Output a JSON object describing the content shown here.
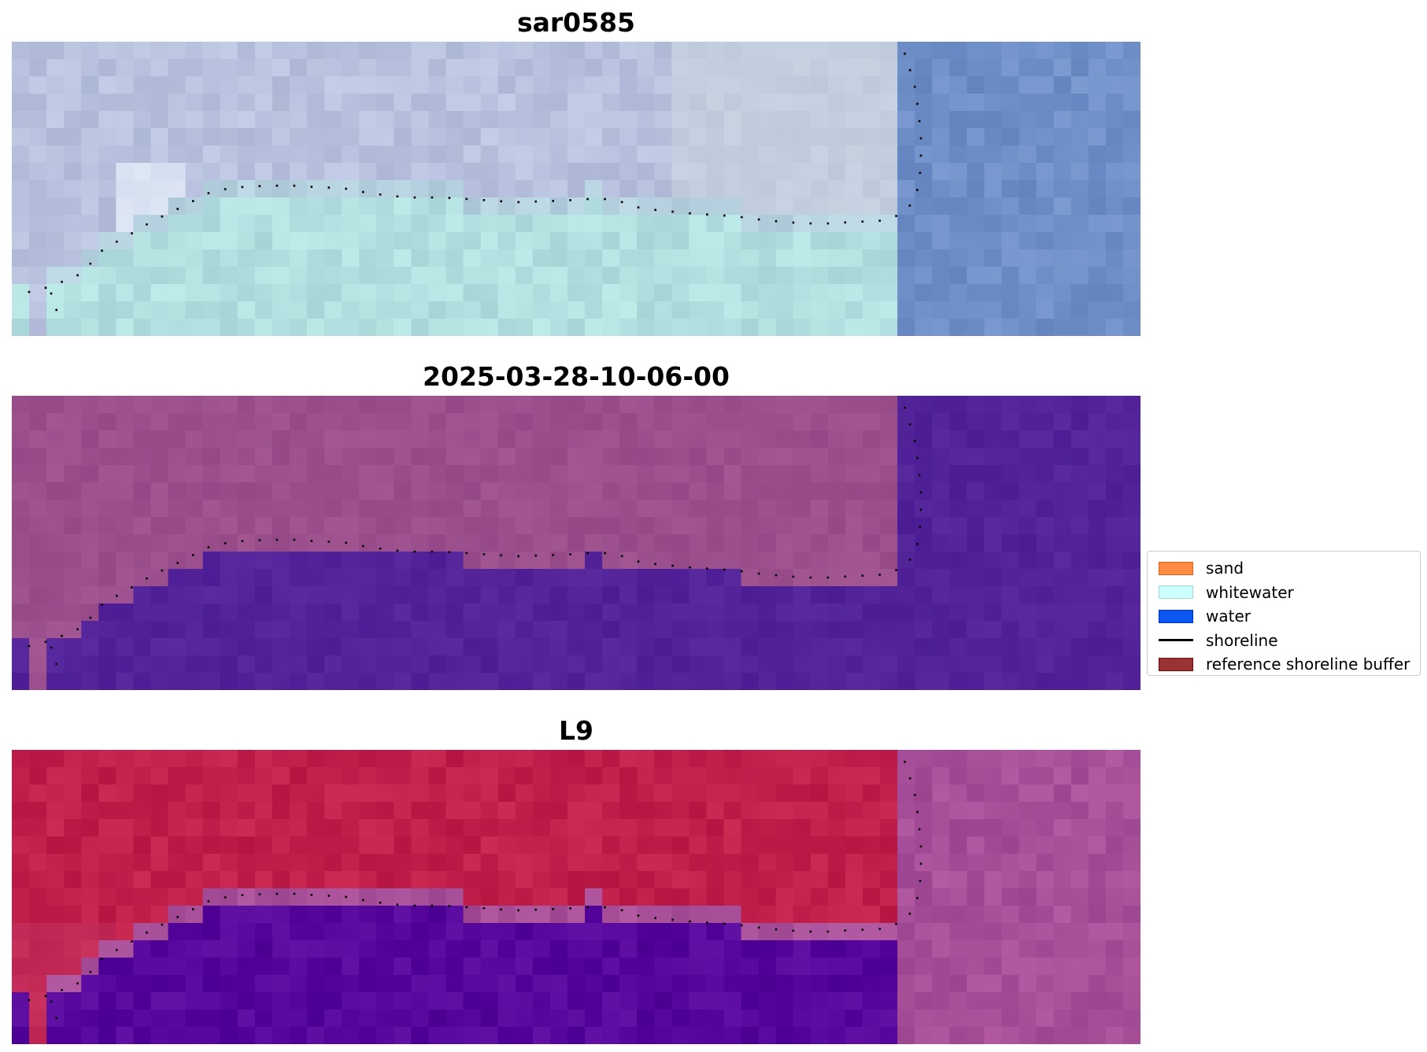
{
  "panels": [
    {
      "title": "sar0585",
      "palette": "rgb"
    },
    {
      "title": "2025-03-28-10-06-00",
      "palette": "classified"
    },
    {
      "title": "L9",
      "palette": "index"
    }
  ],
  "legend": {
    "items": [
      {
        "label": "sand",
        "color": "#ff8c42",
        "kind": "patch"
      },
      {
        "label": "whitewater",
        "color": "#ccffff",
        "kind": "patch"
      },
      {
        "label": "water",
        "color": "#0a56f0",
        "kind": "patch"
      },
      {
        "label": "shoreline",
        "color": "#000000",
        "kind": "line"
      },
      {
        "label": "reference shoreline buffer",
        "color": "#993333",
        "kind": "patch"
      }
    ]
  },
  "colors": {
    "rgb_land": "#b8c2de",
    "rgb_whitewater": "#b2e0e0",
    "rgb_water": "#6f8fc8",
    "class_land": "#9b4f8c",
    "class_water": "#522399",
    "index_land": "#c0204a",
    "index_water": "#56069b",
    "index_transition": "#a84f9a"
  }
}
